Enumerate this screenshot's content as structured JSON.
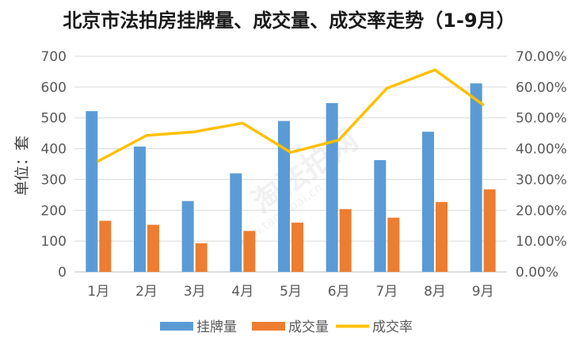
{
  "chart_data": {
    "type": "bar",
    "title": "北京市法拍房挂牌量、成交量、成交率走势（1-9月）",
    "xlabel": "",
    "ylabel": "单位：套",
    "categories": [
      "1月",
      "2月",
      "3月",
      "4月",
      "5月",
      "6月",
      "7月",
      "8月",
      "9月"
    ],
    "ylim": [
      0,
      700
    ],
    "yticks": [
      "0",
      "100",
      "200",
      "300",
      "400",
      "500",
      "600",
      "700"
    ],
    "y2lim": [
      0,
      0.7
    ],
    "y2ticks": [
      "0.00%",
      "10.00%",
      "20.00%",
      "30.00%",
      "40.00%",
      "50.00%",
      "60.00%",
      "70.00%"
    ],
    "grid": true,
    "legend_position": "bottom",
    "series": [
      {
        "name": "挂牌量",
        "kind": "bar",
        "axis": "left",
        "color": "#5b9bd5",
        "values": [
          522,
          407,
          230,
          320,
          490,
          548,
          363,
          455,
          612
        ]
      },
      {
        "name": "成交量",
        "kind": "bar",
        "axis": "left",
        "color": "#ed7d31",
        "values": [
          166,
          153,
          93,
          133,
          160,
          204,
          176,
          227,
          268
        ]
      },
      {
        "name": "成交率",
        "kind": "line",
        "axis": "right",
        "color": "#ffc000",
        "values": [
          0.36,
          0.443,
          0.455,
          0.483,
          0.388,
          0.428,
          0.596,
          0.656,
          0.543
        ]
      }
    ]
  },
  "watermark": {
    "text": "淘法拍网",
    "url": "www.taofapai.cn"
  }
}
